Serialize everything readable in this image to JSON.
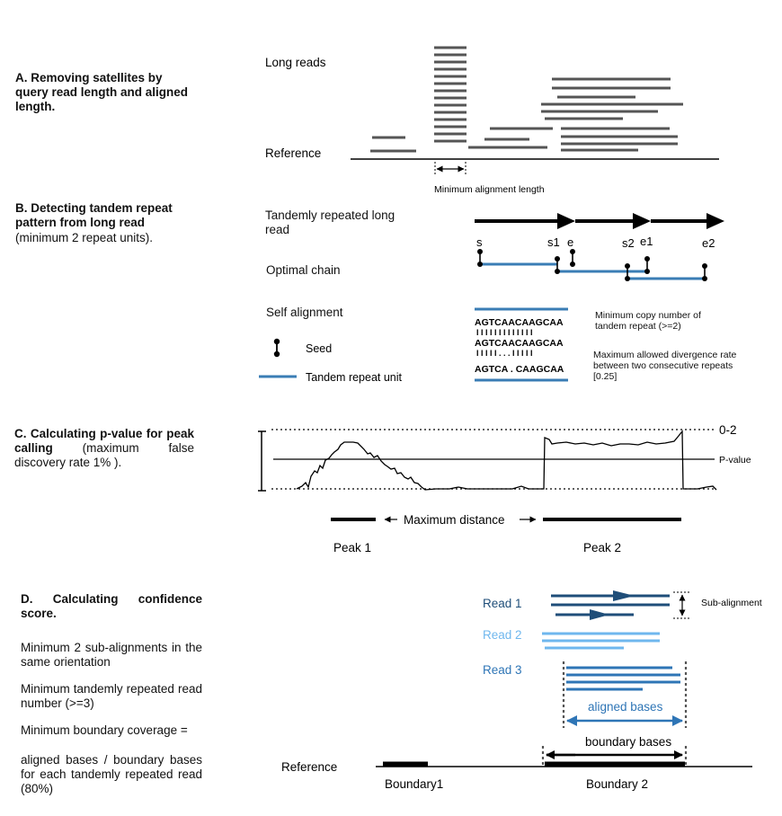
{
  "panelA": {
    "heading": "A. Removing satellites by query read length and aligned length.",
    "long_reads": "Long reads",
    "reference": "Reference",
    "min_align": "Minimum alignment length"
  },
  "panelB": {
    "heading": "B. Detecting tandem repeat pattern from long read",
    "subheading": "(minimum 2 repeat units).",
    "tandem_read": "Tandemly repeated long read",
    "optimal_chain": "Optimal chain",
    "self_alignment": "Self alignment",
    "seed": "Seed",
    "repeat_unit": "Tandem repeat unit",
    "marks": {
      "s": "s",
      "s1": "s1",
      "e": "e",
      "s2": "s2",
      "e1": "e1",
      "e2": "e2"
    },
    "seq1": "AGTCAACAAGCAA",
    "seq2": "AGTCAACAAGCAA",
    "seq3": "AGTCA . CAAGCAA",
    "ticks1": "I I I I I I I I I I I I I",
    "ticks2": "I I I I I  . . .  I I I I I",
    "min_copy": "Minimum copy number of tandem repeat (>=2)",
    "max_div": "Maximum allowed divergence rate between two consecutive repeats [0.25]"
  },
  "panelC": {
    "heading_bold": "C. Calculating p-value for peak calling",
    "heading_rest": " (maximum false discovery rate 1% ).",
    "range": "0-2",
    "pvalue": "P-value",
    "max_distance": "Maximum distance",
    "peak1": "Peak 1",
    "peak2": "Peak 2"
  },
  "panelD": {
    "heading": "D. Calculating confidence score.",
    "crit1": "Minimum 2 sub-alignments in the same orientation",
    "crit2": "Minimum tandemly repeated read number (>=3)",
    "crit3": "Minimum boundary coverage =",
    "crit4": "aligned bases / boundary bases for each tandemly repeated read (80%)",
    "read1": "Read 1",
    "read2": "Read 2",
    "read3": "Read 3",
    "sub_alignment": "Sub-alignment",
    "aligned_bases": "aligned bases",
    "boundary_bases": "boundary bases",
    "reference": "Reference",
    "boundary1": "Boundary1",
    "boundary2": "Boundary  2"
  },
  "colors": {
    "gray": "#555555",
    "read1": "#1f4e79",
    "read2": "#6fb7ee",
    "read3": "#2e75b6",
    "repeat_unit": "#3a7db5"
  }
}
